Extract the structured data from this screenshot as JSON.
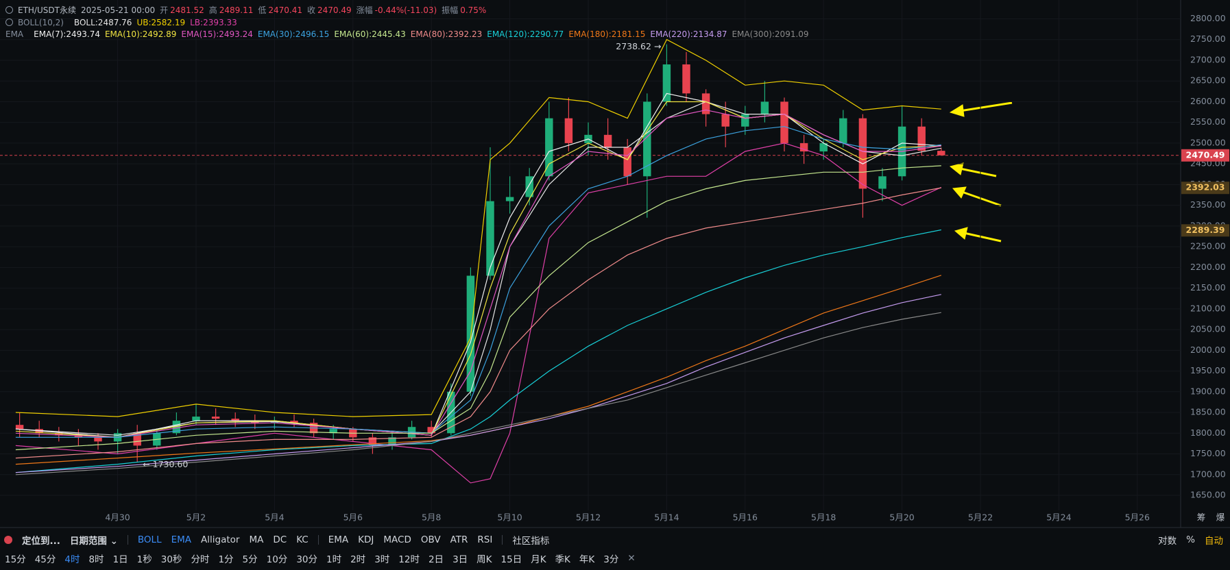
{
  "header": {
    "symbol": "ETH/USDT永续",
    "time": "2025-05-21 00:00",
    "stats": [
      {
        "label": "开",
        "value": "2481.52"
      },
      {
        "label": "高",
        "value": "2489.11"
      },
      {
        "label": "低",
        "value": "2470.41"
      },
      {
        "label": "收",
        "value": "2470.49"
      },
      {
        "label": "涨幅",
        "value": "-0.44%(-11.03)"
      },
      {
        "label": "振幅",
        "value": "0.75%"
      }
    ]
  },
  "chart_data": {
    "type": "candlestick",
    "grid": true,
    "up_color": "#1fae7a",
    "down_color": "#e8434f",
    "x": [
      -2.5,
      -2,
      -1.5,
      -1,
      -0.5,
      0,
      0.5,
      1,
      1.5,
      2,
      2.5,
      3,
      3.5,
      4,
      4.5,
      5,
      5.5,
      6,
      6.5,
      7,
      7.5,
      8,
      8.5,
      9,
      9.5,
      10,
      10.5,
      11,
      11.5,
      12,
      12.5,
      13,
      13.5,
      14,
      14.5,
      15,
      15.5,
      16,
      16.5,
      17,
      17.5,
      18,
      18.5,
      19,
      19.5,
      20,
      20.5,
      21
    ],
    "open": [
      1820,
      1810,
      1800,
      1795,
      1790,
      1780,
      1800,
      1770,
      1800,
      1830,
      1840,
      1835,
      1830,
      1825,
      1830,
      1825,
      1800,
      1810,
      1790,
      1770,
      1790,
      1815,
      1800,
      1900,
      2180,
      2360,
      2370,
      2420,
      2560,
      2500,
      2520,
      2490,
      2420,
      2600,
      2690,
      2620,
      2570,
      2540,
      2570,
      2600,
      2500,
      2480,
      2500,
      2560,
      2390,
      2420,
      2540,
      2481.52
    ],
    "high": [
      1850,
      1830,
      1815,
      1810,
      1800,
      1810,
      1820,
      1810,
      1850,
      1870,
      1860,
      1850,
      1845,
      1840,
      1845,
      1835,
      1820,
      1815,
      1800,
      1800,
      1830,
      1830,
      1920,
      2200,
      2490,
      2420,
      2440,
      2600,
      2610,
      2550,
      2560,
      2510,
      2620,
      2738.62,
      2720,
      2630,
      2600,
      2590,
      2650,
      2610,
      2520,
      2510,
      2580,
      2570,
      2440,
      2590,
      2560,
      2489.11
    ],
    "low": [
      1790,
      1790,
      1780,
      1770,
      1760,
      1750,
      1730.6,
      1760,
      1795,
      1820,
      1820,
      1815,
      1810,
      1810,
      1815,
      1790,
      1785,
      1780,
      1750,
      1760,
      1785,
      1790,
      1795,
      1890,
      2170,
      2330,
      2350,
      2410,
      2480,
      2470,
      2460,
      2400,
      2320,
      2590,
      2600,
      2540,
      2490,
      2520,
      2550,
      2480,
      2450,
      2460,
      2490,
      2320,
      2360,
      2410,
      2470,
      2470.41
    ],
    "close": [
      1810,
      1800,
      1795,
      1790,
      1780,
      1800,
      1770,
      1800,
      1830,
      1840,
      1835,
      1830,
      1825,
      1830,
      1825,
      1800,
      1810,
      1790,
      1770,
      1790,
      1815,
      1800,
      1900,
      2180,
      2360,
      2370,
      2420,
      2560,
      2500,
      2520,
      2490,
      2420,
      2600,
      2690,
      2620,
      2570,
      2540,
      2570,
      2600,
      2500,
      2480,
      2500,
      2560,
      2390,
      2420,
      2540,
      2481.52,
      2470.49
    ],
    "xlim": [
      -3,
      27
    ],
    "xticks": [
      {
        "value": 0,
        "label": "4月30"
      },
      {
        "value": 2,
        "label": "5月2"
      },
      {
        "value": 4,
        "label": "5月4"
      },
      {
        "value": 6,
        "label": "5月6"
      },
      {
        "value": 8,
        "label": "5月8"
      },
      {
        "value": 10,
        "label": "5月10"
      },
      {
        "value": 12,
        "label": "5月12"
      },
      {
        "value": 14,
        "label": "5月14"
      },
      {
        "value": 16,
        "label": "5月16"
      },
      {
        "value": 18,
        "label": "5月18"
      },
      {
        "value": 20,
        "label": "5月20"
      },
      {
        "value": 22,
        "label": "5月22"
      },
      {
        "value": 24,
        "label": "5月24"
      },
      {
        "value": 26,
        "label": "5月26"
      }
    ],
    "ylim": [
      1650,
      2800
    ],
    "yticks": [
      {
        "value": 1650,
        "label": "1650.00"
      },
      {
        "value": 1700,
        "label": "1700.00"
      },
      {
        "value": 1750,
        "label": "1750.00"
      },
      {
        "value": 1800,
        "label": "1800.00"
      },
      {
        "value": 1850,
        "label": "1850.00"
      },
      {
        "value": 1900,
        "label": "1900.00"
      },
      {
        "value": 1950,
        "label": "1950.00"
      },
      {
        "value": 2000,
        "label": "2000.00"
      },
      {
        "value": 2050,
        "label": "2050.00"
      },
      {
        "value": 2100,
        "label": "2100.00"
      },
      {
        "value": 2150,
        "label": "2150.00"
      },
      {
        "value": 2200,
        "label": "2200.00"
      },
      {
        "value": 2250,
        "label": "2250.00"
      },
      {
        "value": 2300,
        "label": "2300.00"
      },
      {
        "value": 2350,
        "label": "2350.00"
      },
      {
        "value": 2400,
        "label": "2400.00"
      },
      {
        "value": 2450,
        "label": "2450.00"
      },
      {
        "value": 2500,
        "label": "2500.00"
      },
      {
        "value": 2550,
        "label": "2550.00"
      },
      {
        "value": 2600,
        "label": "2600.00"
      },
      {
        "value": 2650,
        "label": "2650.00"
      },
      {
        "value": 2700,
        "label": "2700.00"
      },
      {
        "value": 2750,
        "label": "2750.00"
      },
      {
        "value": 2800,
        "label": "2800.00"
      }
    ],
    "series_x": [
      -2.6,
      0,
      2,
      4,
      6,
      8,
      9,
      9.5,
      10,
      11,
      12,
      13,
      14,
      15,
      16,
      17,
      18,
      19,
      20,
      21
    ],
    "indicators": [
      {
        "label": "BOLL(10,2)",
        "series": [
          {
            "name": "BOLL:2487.76",
            "color": "#e6e6e6",
            "values": [
              1810,
              1795,
              1825,
              1828,
              1810,
              1800,
              1900,
              2050,
              2250,
              2400,
              2490,
              2490,
              2560,
              2600,
              2570,
              2570,
              2520,
              2480,
              2470,
              2487.76
            ]
          },
          {
            "name": "UB:2582.19",
            "color": "#f0d000",
            "values": [
              1850,
              1840,
              1870,
              1850,
              1840,
              1845,
              2030,
              2460,
              2500,
              2610,
              2600,
              2560,
              2750,
              2700,
              2640,
              2650,
              2640,
              2580,
              2590,
              2582.19
            ]
          },
          {
            "name": "LB:2393.33",
            "color": "#e040a8",
            "values": [
              1770,
              1750,
              1775,
              1800,
              1780,
              1760,
              1680,
              1690,
              1800,
              2270,
              2380,
              2400,
              2420,
              2420,
              2480,
              2500,
              2470,
              2400,
              2350,
              2393.33
            ]
          }
        ]
      },
      {
        "label": "EMA",
        "series": [
          {
            "name": "EMA(7):2493.74",
            "color": "#f2f2f2",
            "values": [
              1810,
              1790,
              1830,
              1830,
              1810,
              1795,
              2020,
              2200,
              2320,
              2480,
              2510,
              2460,
              2620,
              2600,
              2560,
              2570,
              2500,
              2450,
              2500,
              2493.74
            ]
          },
          {
            "name": "EMA(10):2492.89",
            "color": "#f0e442",
            "values": [
              1805,
              1790,
              1825,
              1830,
              1810,
              1795,
              1990,
              2150,
              2280,
              2450,
              2500,
              2460,
              2600,
              2600,
              2560,
              2570,
              2510,
              2460,
              2490,
              2492.89
            ]
          },
          {
            "name": "EMA(15):2493.24",
            "color": "#e256c2",
            "values": [
              1800,
              1790,
              1820,
              1825,
              1810,
              1795,
              1950,
              2100,
              2250,
              2420,
              2480,
              2470,
              2560,
              2580,
              2560,
              2570,
              2520,
              2480,
              2480,
              2493.24
            ]
          },
          {
            "name": "EMA(30):2496.15",
            "color": "#3ca3e0",
            "values": [
              1790,
              1790,
              1810,
              1815,
              1810,
              1800,
              1880,
              2000,
              2150,
              2300,
              2390,
              2420,
              2470,
              2510,
              2530,
              2540,
              2510,
              2490,
              2485,
              2496.15
            ]
          },
          {
            "name": "EMA(60):2445.43",
            "color": "#c5e88f",
            "values": [
              1760,
              1775,
              1795,
              1805,
              1800,
              1800,
              1860,
              1950,
              2080,
              2180,
              2260,
              2310,
              2360,
              2390,
              2410,
              2420,
              2430,
              2430,
              2440,
              2445.43
            ]
          },
          {
            "name": "EMA(80):2392.23",
            "color": "#f28c8c",
            "values": [
              1740,
              1755,
              1775,
              1785,
              1785,
              1790,
              1840,
              1900,
              2000,
              2100,
              2170,
              2230,
              2270,
              2295,
              2310,
              2325,
              2340,
              2355,
              2375,
              2392.23
            ]
          },
          {
            "name": "EMA(120):2290.77",
            "color": "#18d0d8",
            "values": [
              1705,
              1725,
              1745,
              1760,
              1770,
              1775,
              1810,
              1840,
              1880,
              1950,
              2010,
              2060,
              2100,
              2140,
              2175,
              2205,
              2230,
              2250,
              2272,
              2290.77
            ]
          },
          {
            "name": "EMA(180):2181.15",
            "color": "#f07818",
            "values": [
              1725,
              1740,
              1752,
              1762,
              1772,
              1782,
              1795,
              1805,
              1815,
              1840,
              1865,
              1900,
              1935,
              1975,
              2010,
              2050,
              2090,
              2120,
              2150,
              2181.15
            ]
          },
          {
            "name": "EMA(220):2134.87",
            "color": "#c59cf0",
            "values": [
              1705,
              1720,
              1735,
              1750,
              1765,
              1780,
              1795,
              1805,
              1815,
              1835,
              1860,
              1890,
              1920,
              1960,
              1995,
              2030,
              2060,
              2090,
              2115,
              2134.87
            ]
          },
          {
            "name": "EMA(300):2091.09",
            "color": "#8a8a8a",
            "values": [
              1700,
              1715,
              1730,
              1745,
              1760,
              1780,
              1800,
              1810,
              1820,
              1840,
              1860,
              1880,
              1910,
              1940,
              1970,
              2000,
              2030,
              2055,
              2075,
              2091.09
            ]
          }
        ]
      }
    ],
    "annotations": [
      {
        "text": "2738.62 →",
        "x": 14,
        "y": 2738.62,
        "side": "left"
      },
      {
        "text": "← 1730.60",
        "x": 0.5,
        "y": 1730.6,
        "side": "right"
      }
    ],
    "price_labels": [
      {
        "value": 2470.49,
        "label": "2470.49",
        "color": "#d9434f",
        "text_color": "#ffffff",
        "line": true
      },
      {
        "value": 2392.03,
        "label": "2392.03",
        "color": "#4a3a1a",
        "text_color": "#f0c060",
        "line": false
      },
      {
        "value": 2289.39,
        "label": "2289.39",
        "color": "#4a3a1a",
        "text_color": "#f0c060",
        "line": false
      }
    ],
    "side_buttons": [
      "筹",
      "爆"
    ]
  },
  "toolbar": {
    "groups": [
      [
        {
          "text": "定位到..."
        }
      ],
      [
        {
          "text": "日期范围 ⌄"
        }
      ],
      [
        {
          "text": "BOLL",
          "active": true
        },
        {
          "text": "EMA",
          "active": true
        },
        {
          "text": "Alligator"
        },
        {
          "text": "MA"
        },
        {
          "text": "DC"
        },
        {
          "text": "KC"
        }
      ],
      [
        {
          "text": "EMA"
        },
        {
          "text": "KDJ"
        },
        {
          "text": "MACD"
        },
        {
          "text": "OBV"
        },
        {
          "text": "ATR"
        },
        {
          "text": "RSI"
        }
      ],
      [
        {
          "text": "社区指标"
        }
      ]
    ],
    "right": [
      {
        "text": "对数"
      },
      {
        "text": "%"
      },
      {
        "text": "自动",
        "active": true
      }
    ],
    "intervals": [
      {
        "text": "15分"
      },
      {
        "text": "45分"
      },
      {
        "text": "4时",
        "active": true
      },
      {
        "text": "8时"
      },
      {
        "text": "1日"
      },
      {
        "text": "1秒"
      },
      {
        "text": "30秒"
      },
      {
        "text": "分时"
      },
      {
        "text": "1分"
      },
      {
        "text": "5分"
      },
      {
        "text": "10分"
      },
      {
        "text": "30分"
      },
      {
        "text": "1时"
      },
      {
        "text": "2时"
      },
      {
        "text": "3时"
      },
      {
        "text": "12时"
      },
      {
        "text": "2日"
      },
      {
        "text": "3日"
      },
      {
        "text": "周K"
      },
      {
        "text": "15日"
      },
      {
        "text": "月K"
      },
      {
        "text": "季K"
      },
      {
        "text": "年K"
      },
      {
        "text": "3分"
      }
    ]
  }
}
